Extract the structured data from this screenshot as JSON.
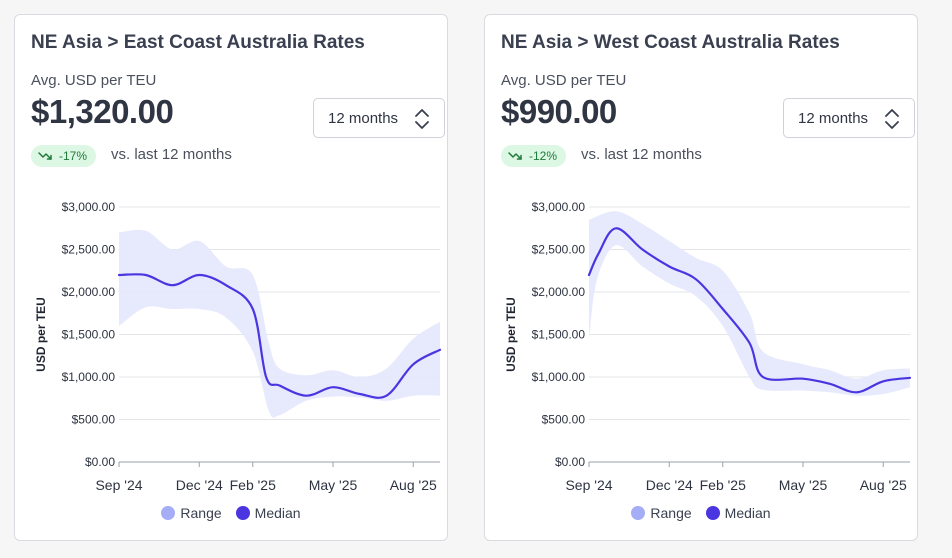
{
  "colors": {
    "range": "#a5adf6",
    "range_fill": "#e6e8fd",
    "median": "#4b35e0",
    "badge_bg": "#dcf7e3",
    "badge_fg": "#1f7a3b"
  },
  "cards": [
    {
      "title": "NE Asia > East Coast Australia Rates",
      "subtitle": "Avg. USD per TEU",
      "value": "$1,320.00",
      "period": "12 months",
      "change": "-17%",
      "compare": "vs. last 12 months",
      "chart_data": {
        "type": "area",
        "ylabel": "USD per TEU",
        "ylim": [
          0,
          3000
        ],
        "yticks": [
          "$0.00",
          "$500.00",
          "$1,000.00",
          "$1,500.00",
          "$2,000.00",
          "$2,500.00",
          "$3,000.00"
        ],
        "xlim": [
          0,
          12
        ],
        "xticks": [
          {
            "x": 0,
            "label": "Sep '24"
          },
          {
            "x": 3,
            "label": "Dec '24"
          },
          {
            "x": 5,
            "label": "Feb '25"
          },
          {
            "x": 8,
            "label": "May '25"
          },
          {
            "x": 11,
            "label": "Aug '25"
          }
        ],
        "legend": [
          "Range",
          "Median"
        ],
        "legend_position": "bottom",
        "series": {
          "median": [
            [
              0,
              2200
            ],
            [
              1,
              2200
            ],
            [
              2,
              2080
            ],
            [
              3,
              2200
            ],
            [
              4,
              2080
            ],
            [
              5,
              1800
            ],
            [
              5.5,
              1000
            ],
            [
              6,
              900
            ],
            [
              7,
              780
            ],
            [
              8,
              880
            ],
            [
              9,
              800
            ],
            [
              10,
              780
            ],
            [
              11,
              1150
            ],
            [
              12,
              1320
            ]
          ],
          "range_high": [
            [
              0,
              2700
            ],
            [
              1,
              2720
            ],
            [
              2,
              2500
            ],
            [
              3,
              2600
            ],
            [
              4,
              2300
            ],
            [
              5,
              2200
            ],
            [
              5.6,
              1400
            ],
            [
              6,
              1100
            ],
            [
              7,
              1020
            ],
            [
              8,
              1080
            ],
            [
              9,
              1000
            ],
            [
              10,
              1100
            ],
            [
              11,
              1450
            ],
            [
              12,
              1650
            ]
          ],
          "range_low": [
            [
              0,
              1600
            ],
            [
              1,
              1820
            ],
            [
              2,
              1800
            ],
            [
              3,
              1800
            ],
            [
              4,
              1700
            ],
            [
              5,
              1300
            ],
            [
              5.6,
              600
            ],
            [
              6,
              550
            ],
            [
              7,
              720
            ],
            [
              8,
              770
            ],
            [
              9,
              760
            ],
            [
              10,
              720
            ],
            [
              11,
              780
            ],
            [
              12,
              780
            ]
          ]
        }
      }
    },
    {
      "title": "NE Asia > West Coast Australia Rates",
      "subtitle": "Avg. USD per TEU",
      "value": "$990.00",
      "period": "12 months",
      "change": "-12%",
      "compare": "vs. last 12 months",
      "chart_data": {
        "type": "area",
        "ylabel": "USD per TEU",
        "ylim": [
          0,
          3000
        ],
        "yticks": [
          "$0.00",
          "$500.00",
          "$1,000.00",
          "$1,500.00",
          "$2,000.00",
          "$2,500.00",
          "$3,000.00"
        ],
        "xlim": [
          0,
          12
        ],
        "xticks": [
          {
            "x": 0,
            "label": "Sep '24"
          },
          {
            "x": 3,
            "label": "Dec '24"
          },
          {
            "x": 5,
            "label": "Feb '25"
          },
          {
            "x": 8,
            "label": "May '25"
          },
          {
            "x": 11,
            "label": "Aug '25"
          }
        ],
        "legend": [
          "Range",
          "Median"
        ],
        "legend_position": "bottom",
        "series": {
          "median": [
            [
              0,
              2200
            ],
            [
              0.35,
              2450
            ],
            [
              1,
              2750
            ],
            [
              2,
              2500
            ],
            [
              3,
              2300
            ],
            [
              4,
              2150
            ],
            [
              5,
              1800
            ],
            [
              6,
              1400
            ],
            [
              6.5,
              1000
            ],
            [
              8,
              980
            ],
            [
              9,
              920
            ],
            [
              10,
              820
            ],
            [
              11,
              950
            ],
            [
              12,
              990
            ]
          ],
          "range_high": [
            [
              0,
              2850
            ],
            [
              1,
              2950
            ],
            [
              2,
              2800
            ],
            [
              3,
              2600
            ],
            [
              4,
              2400
            ],
            [
              5,
              2250
            ],
            [
              6,
              1750
            ],
            [
              6.5,
              1300
            ],
            [
              8,
              1150
            ],
            [
              9,
              1080
            ],
            [
              10,
              980
            ],
            [
              11,
              1080
            ],
            [
              12,
              1100
            ]
          ],
          "range_low": [
            [
              0,
              1450
            ],
            [
              0.3,
              2150
            ],
            [
              1,
              2550
            ],
            [
              2,
              2300
            ],
            [
              3,
              2100
            ],
            [
              4,
              1950
            ],
            [
              5,
              1600
            ],
            [
              6,
              1000
            ],
            [
              6.5,
              850
            ],
            [
              8,
              840
            ],
            [
              9,
              820
            ],
            [
              10,
              780
            ],
            [
              11,
              800
            ],
            [
              12,
              880
            ]
          ]
        }
      }
    }
  ]
}
